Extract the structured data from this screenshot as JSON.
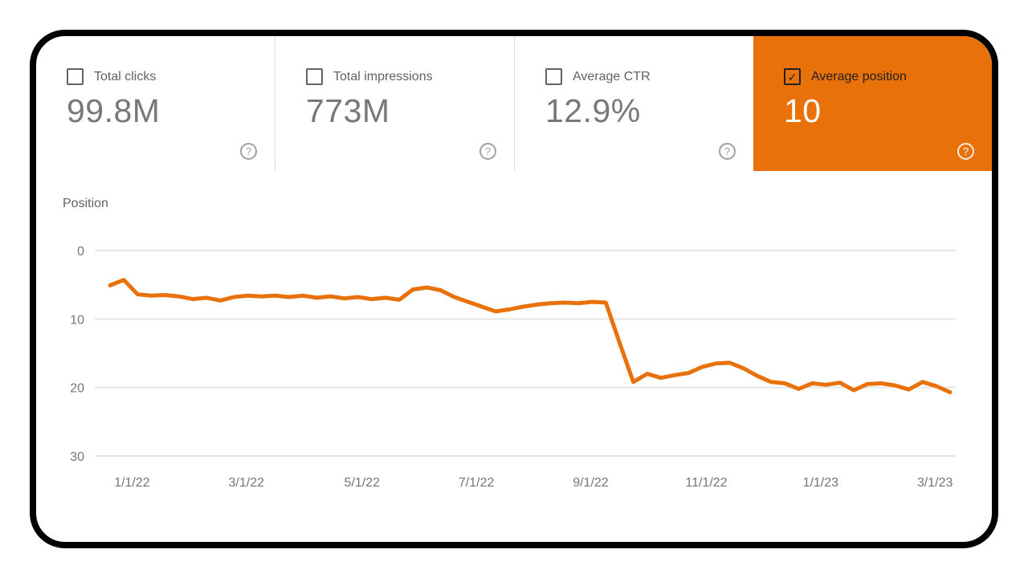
{
  "icons": {
    "help": "?",
    "check": "✓"
  },
  "metrics": [
    {
      "label": "Total clicks",
      "value": "99.8M",
      "checked": false,
      "selected": false
    },
    {
      "label": "Total impressions",
      "value": "773M",
      "checked": false,
      "selected": false
    },
    {
      "label": "Average CTR",
      "value": "12.9%",
      "checked": false,
      "selected": false
    },
    {
      "label": "Average position",
      "value": "10",
      "checked": true,
      "selected": true,
      "color": "#e8710a"
    }
  ],
  "chart_data": {
    "type": "line",
    "title": "Position",
    "y_axis_inverted": true,
    "grid": "horizontal",
    "ylim": [
      0,
      30
    ],
    "y_ticks": [
      0,
      10,
      20,
      30
    ],
    "x_weeks_domain": [
      0,
      61
    ],
    "x_ticks": [
      {
        "week": 1.6,
        "label": "1/1/22"
      },
      {
        "week": 9.9,
        "label": "3/1/22"
      },
      {
        "week": 18.3,
        "label": "5/1/22"
      },
      {
        "week": 26.6,
        "label": "7/1/22"
      },
      {
        "week": 34.9,
        "label": "9/1/22"
      },
      {
        "week": 43.3,
        "label": "11/1/22"
      },
      {
        "week": 51.6,
        "label": "1/1/23"
      },
      {
        "week": 59.9,
        "label": "3/1/23"
      }
    ],
    "series": [
      {
        "name": "Average position",
        "color": "#e8710a",
        "values": [
          5.1,
          4.3,
          6.4,
          6.6,
          6.5,
          6.7,
          7.1,
          6.9,
          7.3,
          6.8,
          6.6,
          6.7,
          6.6,
          6.8,
          6.6,
          6.9,
          6.7,
          7.0,
          6.8,
          7.1,
          6.9,
          7.2,
          5.7,
          5.4,
          5.8,
          6.8,
          7.5,
          8.2,
          8.9,
          8.6,
          8.2,
          7.9,
          7.7,
          7.6,
          7.7,
          7.5,
          7.6,
          13.5,
          19.2,
          18.0,
          18.6,
          18.2,
          17.9,
          17.0,
          16.5,
          16.4,
          17.2,
          18.3,
          19.2,
          19.4,
          20.2,
          19.4,
          19.6,
          19.3,
          20.4,
          19.5,
          19.4,
          19.7,
          20.3,
          19.2,
          19.8,
          20.7
        ]
      }
    ]
  }
}
